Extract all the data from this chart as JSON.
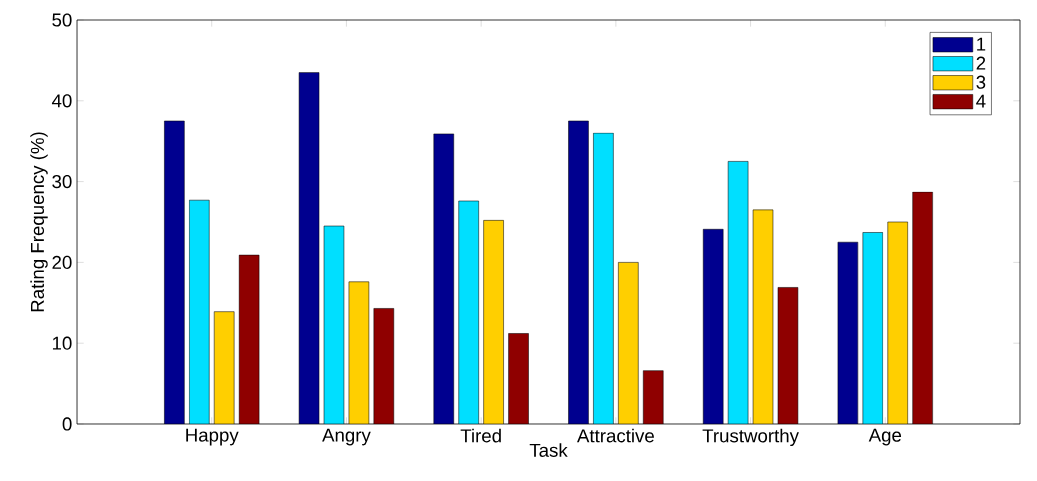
{
  "chart_data": {
    "type": "bar",
    "xlabel": "Task",
    "ylabel": "Rating Frequency (%)",
    "categories": [
      "Happy",
      "Angry",
      "Tired",
      "Attractive",
      "Trustworthy",
      "Age"
    ],
    "series": [
      {
        "name": "1",
        "color": "#00008f",
        "values": [
          37.5,
          43.5,
          35.9,
          37.5,
          24.1,
          22.5
        ]
      },
      {
        "name": "2",
        "color": "#00dfff",
        "values": [
          27.7,
          24.5,
          27.6,
          36.0,
          32.5,
          23.7
        ]
      },
      {
        "name": "3",
        "color": "#ffcf00",
        "values": [
          13.9,
          17.6,
          25.2,
          20.0,
          26.5,
          25.0
        ]
      },
      {
        "name": "4",
        "color": "#8f0000",
        "values": [
          20.9,
          14.3,
          11.2,
          6.6,
          16.9,
          28.7
        ]
      }
    ],
    "ylim": [
      0,
      50
    ],
    "yticks": [
      0,
      10,
      20,
      30,
      40,
      50
    ],
    "grid": false,
    "legend": "top right"
  }
}
